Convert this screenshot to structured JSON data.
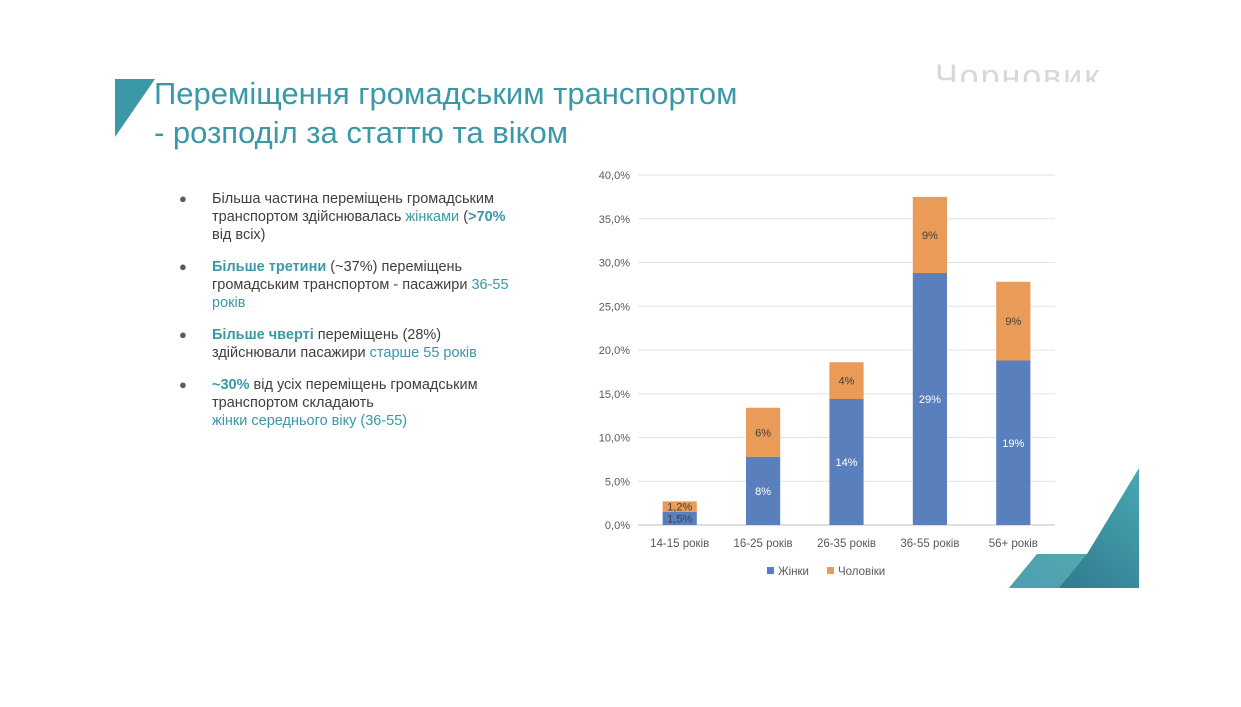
{
  "slide": {
    "title_line1": "Переміщення громадським транспортом",
    "title_line2": "- розподіл за статтю та віком",
    "watermark": "Чорновик",
    "accent_color": "#3a98a7"
  },
  "bullets": [
    {
      "p1": "Більша частина переміщень громадським транспортом здійснювалась ",
      "h1": "жінками",
      "p2": " (",
      "h2": ">70%",
      "p3": " від всіх)"
    },
    {
      "h1": "Більше третини",
      "p1": " (~37%) переміщень громадським транспортом - пасажири ",
      "h2": "36-55 років"
    },
    {
      "h1": "Більше чверті",
      "p1": " переміщень (28%) здійснювали  пасажири ",
      "h2": "старше 55 років"
    },
    {
      "h1": "~30%",
      "p1": " від усіх переміщень громадським транспортом складають",
      "h2": "жінки середнього віку (36-55)"
    }
  ],
  "chart_data": {
    "type": "bar",
    "stacked": true,
    "categories": [
      "14-15 років",
      "16-25 років",
      "26-35 років",
      "36-55 років",
      "56+ років"
    ],
    "series": [
      {
        "name": "Жінки",
        "color": "#5a7fbd",
        "values": [
          1.5,
          7.8,
          14.4,
          28.8,
          18.8
        ],
        "labels": [
          "1,5%",
          "8%",
          "14%",
          "29%",
          "19%"
        ]
      },
      {
        "name": "Чоловіки",
        "color": "#e99b57",
        "values": [
          1.2,
          5.6,
          4.2,
          8.7,
          9.0
        ],
        "labels": [
          "1,2%",
          "6%",
          "4%",
          "9%",
          "9%"
        ]
      }
    ],
    "ylim": [
      0,
      40
    ],
    "yticks": [
      0,
      5,
      10,
      15,
      20,
      25,
      30,
      35,
      40
    ],
    "ytick_labels": [
      "0,0%",
      "5,0%",
      "10,0%",
      "15,0%",
      "20,0%",
      "25,0%",
      "30,0%",
      "35,0%",
      "40,0%"
    ],
    "legend_position": "bottom",
    "grid": true
  }
}
